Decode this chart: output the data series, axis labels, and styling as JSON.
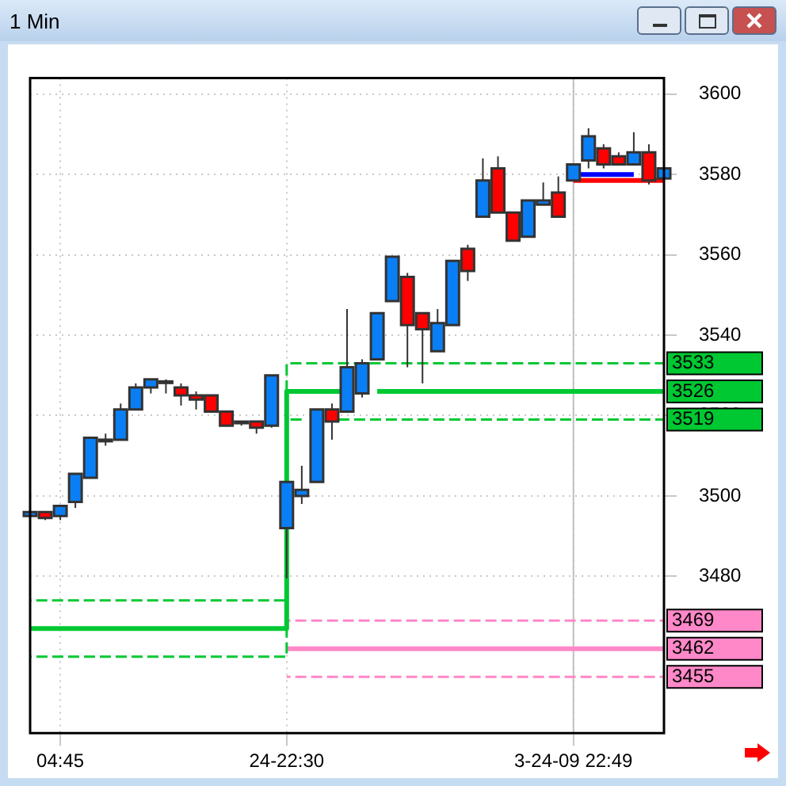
{
  "chart_data": {
    "type": "candlestick",
    "title": "1 Min",
    "categories": [
      null,
      null,
      "04:45",
      null,
      null,
      null,
      null,
      null,
      null,
      null,
      null,
      null,
      null,
      null,
      null,
      null,
      null,
      "24-22:30",
      null,
      null,
      null,
      null,
      null,
      null,
      null,
      null,
      null,
      null,
      null,
      null,
      null,
      null,
      null,
      null,
      null,
      null,
      "3-24-09 22:49",
      null,
      null,
      null,
      null,
      null,
      null
    ],
    "ohlc": [
      [
        3495,
        3496,
        3495,
        3496
      ],
      [
        3496,
        3496,
        3494,
        3494.5
      ],
      [
        3495,
        3497.5,
        3494,
        3497.5
      ],
      [
        3498.5,
        3505.5,
        3497,
        3505.5
      ],
      [
        3504.5,
        3514.5,
        3504.5,
        3514.5
      ],
      [
        3514,
        3515.5,
        3512.5,
        3514
      ],
      [
        3514,
        3523,
        3514,
        3521.5
      ],
      [
        3521.5,
        3528,
        3521.5,
        3527
      ],
      [
        3527,
        3529,
        3525.5,
        3529
      ],
      [
        3528.5,
        3529,
        3525.5,
        3528.5
      ],
      [
        3527,
        3528,
        3522.5,
        3525
      ],
      [
        3525,
        3526,
        3521.5,
        3524
      ],
      [
        3525,
        3525,
        3521,
        3521
      ],
      [
        3521,
        3521,
        3517.5,
        3517.5
      ],
      [
        3518.5,
        3518.5,
        3517.5,
        3518.5
      ],
      [
        3518.5,
        3518.5,
        3515.5,
        3517
      ],
      [
        3517.5,
        3530,
        3517,
        3530
      ],
      [
        3492,
        3503.5,
        3479.5,
        3503.5
      ],
      [
        3500,
        3507.5,
        3498,
        3501.5
      ],
      [
        3503.5,
        3521.5,
        3503.5,
        3521.5
      ],
      [
        3521.5,
        3523,
        3514,
        3518.5
      ],
      [
        3521,
        3546.5,
        3521,
        3532
      ],
      [
        3525.5,
        3534,
        3524.5,
        3533
      ],
      [
        3534,
        3545.5,
        3534,
        3545.5
      ],
      [
        3548.5,
        3559.5,
        3548.5,
        3559.5
      ],
      [
        3554.5,
        3555.5,
        3532,
        3542.5
      ],
      [
        3545.5,
        3545.5,
        3528,
        3541.5
      ],
      [
        3536,
        3546.5,
        3536,
        3543
      ],
      [
        3542.5,
        3558.5,
        3542.5,
        3558.5
      ],
      [
        3561.5,
        3562.5,
        3553.5,
        3556
      ],
      [
        3569.5,
        3584,
        3569.5,
        3578.5
      ],
      [
        3581.5,
        3584.5,
        3570.5,
        3570.5
      ],
      [
        3570.5,
        3570.5,
        3563.5,
        3563.5
      ],
      [
        3564.5,
        3573.5,
        3564.5,
        3573.5
      ],
      [
        3572.5,
        3578,
        3572.5,
        3573.5
      ],
      [
        3575.5,
        3579.5,
        3569.5,
        3569.5
      ],
      [
        3578.5,
        3582.5,
        3578.5,
        3582.5
      ],
      [
        3583.5,
        3591.5,
        3581.5,
        3589.5
      ],
      [
        3586.5,
        3587.5,
        3581.5,
        3582.5
      ],
      [
        3584.5,
        3585.5,
        3582.5,
        3582.5
      ],
      [
        3582.5,
        3590.5,
        3582.5,
        3585.5
      ],
      [
        3585.5,
        3587.5,
        3577.5,
        3578.5
      ],
      [
        3579,
        3587.5,
        3579,
        3581.5
      ]
    ],
    "colors": [
      "#0a7ff5",
      "#ff0000",
      "#0a7ff5",
      "#0a7ff5",
      "#0a7ff5",
      "#333333",
      "#0a7ff5",
      "#0a7ff5",
      "#0a7ff5",
      "#333333",
      "#ff0000",
      "#ff0000",
      "#ff0000",
      "#ff0000",
      "#333333",
      "#ff0000",
      "#0a7ff5",
      "#0a7ff5",
      "#0a7ff5",
      "#0a7ff5",
      "#ff0000",
      "#0a7ff5",
      "#0a7ff5",
      "#0a7ff5",
      "#0a7ff5",
      "#ff0000",
      "#ff0000",
      "#0a7ff5",
      "#0a7ff5",
      "#ff0000",
      "#0a7ff5",
      "#ff0000",
      "#ff0000",
      "#0a7ff5",
      "#0a7ff5",
      "#ff0000",
      "#0a7ff5",
      "#0a7ff5",
      "#ff0000",
      "#ff0000",
      "#0a7ff5",
      "#ff0000",
      "#0a7ff5"
    ],
    "series": [
      {
        "type": "step",
        "color": "#00c832",
        "line_style": "dashed",
        "values": [
          3474,
          3474,
          3474,
          3474,
          3474,
          3474,
          3474,
          3474,
          3474,
          3474,
          3474,
          3474,
          3474,
          3474,
          3474,
          3474,
          3474,
          3533,
          3533,
          3533,
          3533,
          3533,
          3533,
          3533,
          3533,
          3533,
          3533,
          3533,
          3533,
          3533,
          3533,
          3533,
          3533,
          3533,
          3533,
          3533,
          3533,
          3533,
          3533,
          3533,
          3533,
          3533,
          3533
        ],
        "value_labels": [
          null,
          null,
          null,
          null,
          null,
          null,
          null,
          null,
          null,
          null,
          null,
          null,
          null,
          null,
          null,
          null,
          null,
          null,
          null,
          null,
          null,
          null,
          null,
          null,
          null,
          null,
          null,
          null,
          null,
          null,
          null,
          null,
          null,
          null,
          null,
          null,
          null,
          null,
          null,
          null,
          null,
          null,
          "3533"
        ]
      },
      {
        "type": "step",
        "color": "#00c832",
        "line_style": "solid",
        "values": [
          3467,
          3467,
          3467,
          3467,
          3467,
          3467,
          3467,
          3467,
          3467,
          3467,
          3467,
          3467,
          3467,
          3467,
          3467,
          3467,
          3467,
          3526,
          3526,
          3526,
          3526,
          3526,
          null,
          3526,
          3526,
          3526,
          3526,
          3526,
          3526,
          3526,
          3526,
          3526,
          3526,
          3526,
          3526,
          3526,
          3526,
          3526,
          3526,
          3526,
          3526,
          3526,
          3526
        ],
        "value_labels": [
          null,
          null,
          null,
          null,
          null,
          null,
          null,
          null,
          null,
          null,
          null,
          null,
          null,
          null,
          null,
          null,
          null,
          null,
          null,
          null,
          null,
          null,
          null,
          null,
          null,
          null,
          null,
          null,
          null,
          null,
          null,
          null,
          null,
          null,
          null,
          null,
          null,
          null,
          null,
          null,
          null,
          null,
          "3526"
        ]
      },
      {
        "type": "step",
        "color": "#00c832",
        "line_style": "dashed",
        "values": [
          3460,
          3460,
          3460,
          3460,
          3460,
          3460,
          3460,
          3460,
          3460,
          3460,
          3460,
          3460,
          3460,
          3460,
          3460,
          3460,
          3460,
          3519,
          3519,
          null,
          3519,
          3519,
          3519,
          3519,
          3519,
          3519,
          3519,
          3519,
          3519,
          3519,
          3519,
          3519,
          3519,
          3519,
          3519,
          3519,
          3519,
          3519,
          3519,
          3519,
          3519,
          3519,
          3519
        ],
        "value_labels": [
          null,
          null,
          null,
          null,
          null,
          null,
          null,
          null,
          null,
          null,
          null,
          null,
          null,
          null,
          null,
          null,
          null,
          null,
          null,
          null,
          null,
          null,
          null,
          null,
          null,
          null,
          null,
          null,
          null,
          null,
          null,
          null,
          null,
          null,
          null,
          null,
          null,
          null,
          null,
          null,
          null,
          null,
          "3519"
        ]
      },
      {
        "type": "step",
        "color": "#ff88c8",
        "line_style": "dashed",
        "values": [
          null,
          null,
          null,
          null,
          null,
          null,
          null,
          null,
          null,
          null,
          null,
          null,
          null,
          null,
          null,
          null,
          null,
          3469,
          3469,
          3469,
          3469,
          3469,
          3469,
          3469,
          3469,
          3469,
          3469,
          3469,
          3469,
          3469,
          3469,
          3469,
          3469,
          3469,
          3469,
          3469,
          3469,
          3469,
          3469,
          3469,
          3469,
          3469,
          3469
        ],
        "value_labels": [
          null,
          null,
          null,
          null,
          null,
          null,
          null,
          null,
          null,
          null,
          null,
          null,
          null,
          null,
          null,
          null,
          null,
          null,
          null,
          null,
          null,
          null,
          null,
          null,
          null,
          null,
          null,
          null,
          null,
          null,
          null,
          null,
          null,
          null,
          null,
          null,
          null,
          null,
          null,
          null,
          null,
          null,
          "3469"
        ]
      },
      {
        "type": "step",
        "color": "#ff88c8",
        "line_style": "solid",
        "values": [
          null,
          null,
          null,
          null,
          null,
          null,
          null,
          null,
          null,
          null,
          null,
          null,
          null,
          null,
          null,
          null,
          null,
          3462,
          3462,
          3462,
          3462,
          3462,
          3462,
          3462,
          3462,
          3462,
          3462,
          3462,
          3462,
          3462,
          3462,
          3462,
          3462,
          3462,
          3462,
          3462,
          3462,
          3462,
          3462,
          3462,
          3462,
          3462,
          3462
        ],
        "value_labels": [
          null,
          null,
          null,
          null,
          null,
          null,
          null,
          null,
          null,
          null,
          null,
          null,
          null,
          null,
          null,
          null,
          null,
          null,
          null,
          null,
          null,
          null,
          null,
          null,
          null,
          null,
          null,
          null,
          null,
          null,
          null,
          null,
          null,
          null,
          null,
          null,
          null,
          null,
          null,
          null,
          null,
          null,
          "3462"
        ]
      },
      {
        "type": "step",
        "color": "#ff88c8",
        "line_style": "dashed",
        "values": [
          null,
          null,
          null,
          null,
          null,
          null,
          null,
          null,
          null,
          null,
          null,
          null,
          null,
          null,
          null,
          null,
          null,
          3455,
          3455,
          3455,
          3455,
          3455,
          3455,
          3455,
          3455,
          3455,
          3455,
          3455,
          3455,
          3455,
          3455,
          3455,
          3455,
          3455,
          3455,
          3455,
          3455,
          3455,
          3455,
          3455,
          3455,
          3455,
          3455
        ],
        "value_labels": [
          null,
          null,
          null,
          null,
          null,
          null,
          null,
          null,
          null,
          null,
          null,
          null,
          null,
          null,
          null,
          null,
          null,
          null,
          null,
          null,
          null,
          null,
          null,
          null,
          null,
          null,
          null,
          null,
          null,
          null,
          null,
          null,
          null,
          null,
          null,
          null,
          null,
          null,
          null,
          null,
          null,
          null,
          "3455"
        ]
      },
      {
        "type": "line",
        "color": "#0000ff",
        "line_style": "solid",
        "values": [
          null,
          null,
          null,
          null,
          null,
          null,
          null,
          null,
          null,
          null,
          null,
          null,
          null,
          null,
          null,
          null,
          null,
          null,
          null,
          null,
          null,
          null,
          null,
          null,
          null,
          null,
          null,
          null,
          null,
          null,
          null,
          null,
          null,
          null,
          null,
          null,
          3580,
          3580,
          3580,
          3580,
          3580,
          null,
          null
        ]
      },
      {
        "type": "line",
        "color": "#ff0000",
        "line_style": "solid",
        "values": [
          null,
          null,
          null,
          null,
          null,
          null,
          null,
          null,
          null,
          null,
          null,
          null,
          null,
          null,
          null,
          null,
          null,
          null,
          null,
          null,
          null,
          null,
          null,
          null,
          null,
          null,
          null,
          null,
          null,
          null,
          null,
          null,
          null,
          null,
          null,
          null,
          3578.5,
          3578.5,
          3578.5,
          3578.5,
          3578.5,
          3578.5,
          3578.5
        ]
      }
    ],
    "ref_lines": [
      {
        "axis": "x",
        "value": "3-24-09 22:49",
        "color": "#c0c0c0"
      }
    ],
    "ylim": [
      3441,
      3604
    ],
    "yticks": [
      3480,
      3500,
      3520,
      3540,
      3560,
      3580,
      3600
    ],
    "grid": true,
    "line_style": "dotted"
  }
}
